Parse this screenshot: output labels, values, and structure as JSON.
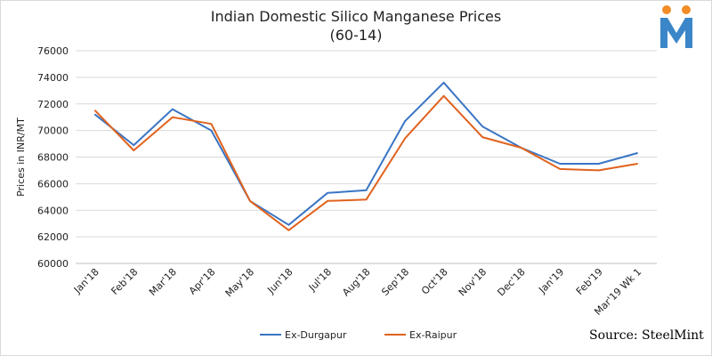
{
  "title_line1": "Indian Domestic Silico Manganese Prices",
  "title_line2": "(60-14)",
  "source": "Source: SteelMint",
  "logo": {
    "icon": "steelmint-m-logo",
    "color_blue": "#3a86c8",
    "color_orange": "#f28c28"
  },
  "chart_data": {
    "type": "line",
    "title": "Indian Domestic Silico Manganese Prices (60-14)",
    "xlabel": "",
    "ylabel": "Prices in INR/MT",
    "ylim": [
      60000,
      76000
    ],
    "yticks": [
      60000,
      62000,
      64000,
      66000,
      68000,
      70000,
      72000,
      74000,
      76000
    ],
    "grid": true,
    "legend": "bottom",
    "categories": [
      "Jan'18",
      "Feb'18",
      "Mar'18",
      "Apr'18",
      "May'18",
      "Jun'18",
      "Jul'18",
      "Aug'18",
      "Sep'18",
      "Oct'18",
      "Nov'18",
      "Dec'18",
      "Jan'19",
      "Feb'19",
      "Mar'19 Wk 1"
    ],
    "series": [
      {
        "name": "Ex-Durgapur",
        "color": "#3a75c4",
        "values": [
          71200,
          68900,
          71600,
          70000,
          64700,
          62900,
          65300,
          65500,
          70700,
          73600,
          70300,
          68700,
          67500,
          67500,
          68300
        ]
      },
      {
        "name": "Ex-Raipur",
        "color": "#e0621e",
        "values": [
          71500,
          68500,
          71000,
          70500,
          64700,
          62500,
          64700,
          64800,
          69400,
          72600,
          69500,
          68700,
          67100,
          67000,
          67500
        ]
      }
    ]
  }
}
